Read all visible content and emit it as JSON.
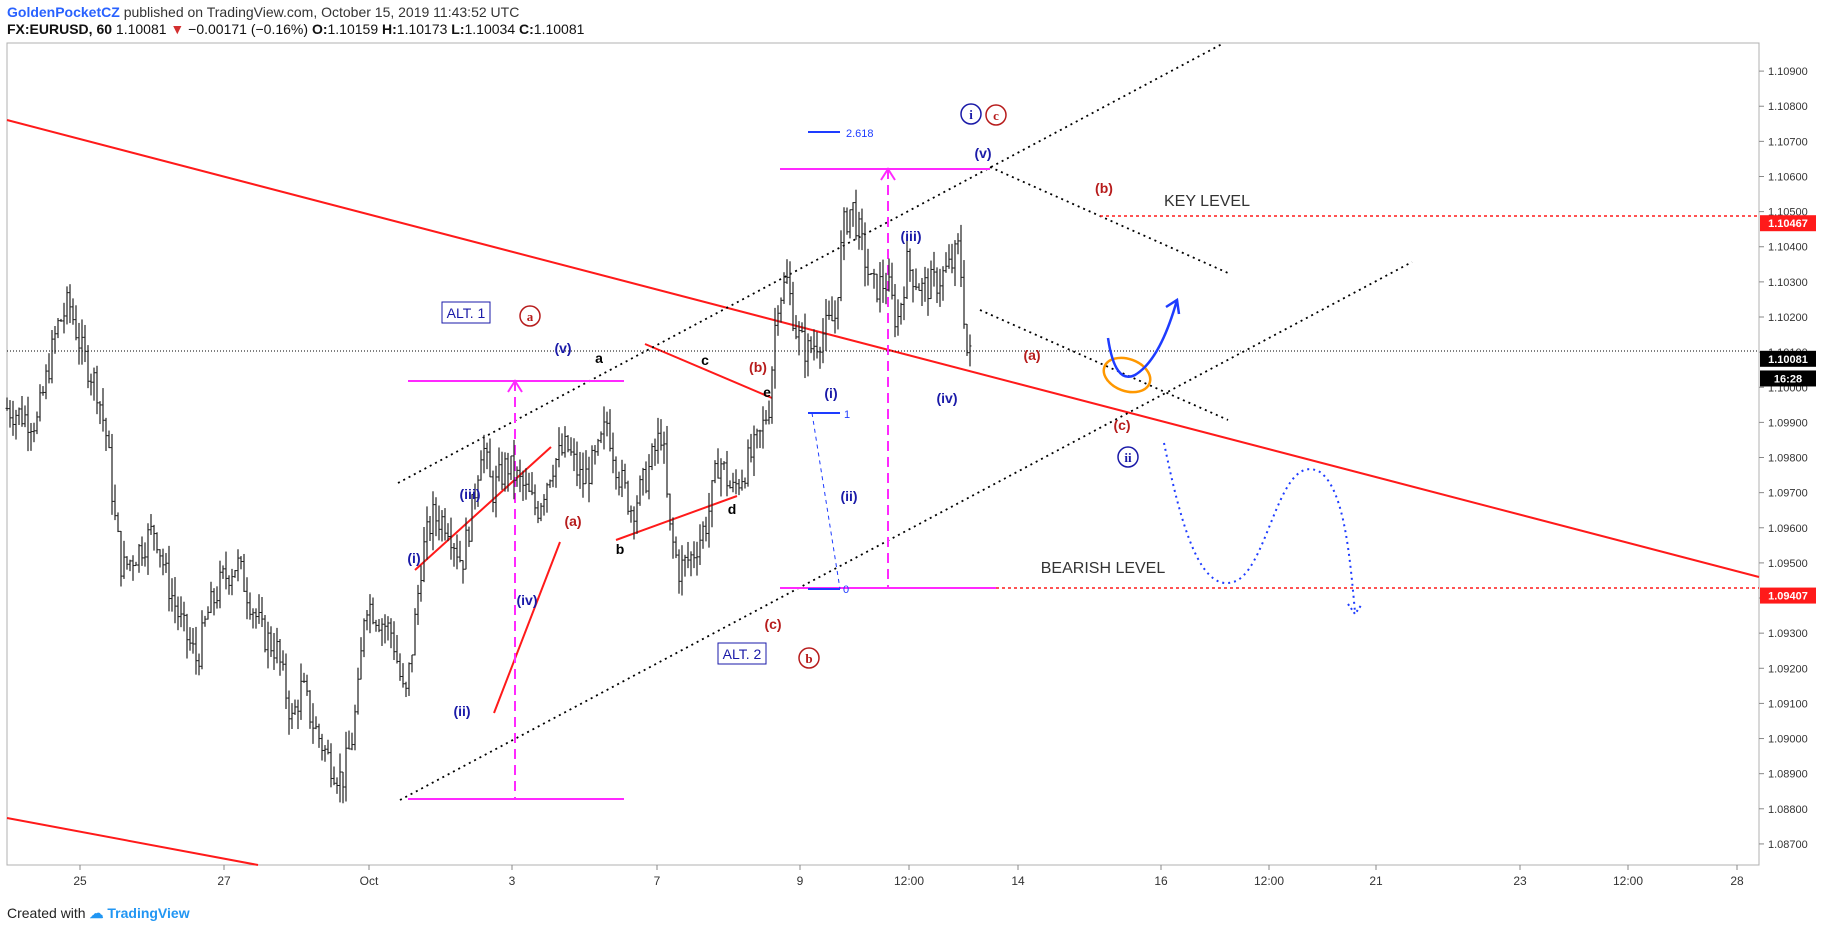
{
  "header": {
    "publisher": "GoldenPocketCZ",
    "published_text": "published on TradingView.com, October 15, 2019 11:43:52 UTC",
    "symbol": "FX:EURUSD, 60",
    "last": "1.10081",
    "change": "−0.00171 (−0.16%)",
    "o_label": "O:",
    "o_value": "1.10159",
    "h_label": "H:",
    "h_value": "1.10173",
    "l_label": "L:",
    "l_value": "1.10034",
    "c_label": "C:",
    "c_value": "1.10081"
  },
  "footer": {
    "created_with": "Created with",
    "brand": "TradingView"
  },
  "colors": {
    "up": "#26a69a",
    "down": "#ef5350",
    "bars": "#222222",
    "trend": "#ff1a1a",
    "magenta": "#ff29ff",
    "label_blue": "#1a1aa8",
    "label_red": "#b71c1c",
    "orange": "#ff9800",
    "forecast": "#1e3cff"
  },
  "chart_data": {
    "type": "ohlc",
    "symbol": "FX:EURUSD",
    "interval": "60",
    "x_ticks": [
      "25",
      "27",
      "Oct",
      "3",
      "7",
      "9",
      "12:00",
      "14",
      "16",
      "12:00",
      "21",
      "23",
      "12:00",
      "28"
    ],
    "y_ticks": [
      "1.10900",
      "1.10800",
      "1.10700",
      "1.10600",
      "1.10500",
      "1.10400",
      "1.10300",
      "1.10200",
      "1.10100",
      "1.10000",
      "1.09900",
      "1.09800",
      "1.09700",
      "1.09600",
      "1.09500",
      "1.09400",
      "1.09300",
      "1.09200",
      "1.09100",
      "1.09000",
      "1.08900",
      "1.08800",
      "1.08700"
    ],
    "ylim": [
      1.0864,
      1.1098
    ],
    "price_markers": [
      {
        "value": "1.10467",
        "price": 1.10467,
        "color": "#ff1a1a"
      },
      {
        "value": "1.10081",
        "price": 1.10081,
        "color": "#000000"
      },
      {
        "value": "16:28",
        "price": 1.10025,
        "color": "#000000"
      },
      {
        "value": "1.09407",
        "price": 1.09407,
        "color": "#ff1a1a"
      }
    ],
    "levels": [
      {
        "label": "KEY LEVEL",
        "price": 1.10467
      },
      {
        "label": "BEARISH LEVEL",
        "price": 1.09407
      }
    ],
    "fib_labels": [
      "2.618",
      "1",
      "0"
    ],
    "wave_labels": [
      {
        "text": "(i)",
        "color": "blue"
      },
      {
        "text": "(ii)",
        "color": "blue"
      },
      {
        "text": "(iii)",
        "color": "blue"
      },
      {
        "text": "(iv)",
        "color": "blue"
      },
      {
        "text": "(v)",
        "color": "blue"
      },
      {
        "text": "(i)",
        "color": "blue"
      },
      {
        "text": "(ii)",
        "color": "blue"
      },
      {
        "text": "(iii)",
        "color": "blue"
      },
      {
        "text": "(iv)",
        "color": "blue"
      },
      {
        "text": "(v)",
        "color": "blue"
      },
      {
        "text": "(a)",
        "color": "red"
      },
      {
        "text": "(b)",
        "color": "red"
      },
      {
        "text": "(c)",
        "color": "red"
      },
      {
        "text": "(a)",
        "color": "red"
      },
      {
        "text": "(b)",
        "color": "red"
      },
      {
        "text": "(c)",
        "color": "red"
      },
      {
        "text": "a",
        "color": "black"
      },
      {
        "text": "b",
        "color": "black"
      },
      {
        "text": "c",
        "color": "black"
      },
      {
        "text": "d",
        "color": "black"
      },
      {
        "text": "e",
        "color": "black"
      }
    ],
    "circled_labels": [
      {
        "text": "a",
        "color": "red"
      },
      {
        "text": "b",
        "color": "red"
      },
      {
        "text": "c",
        "color": "red"
      },
      {
        "text": "i",
        "color": "blue"
      },
      {
        "text": "ii",
        "color": "blue"
      }
    ],
    "boxed_labels": [
      "ALT. 1",
      "ALT. 2"
    ],
    "series_points": [
      [
        0,
        1.0994
      ],
      [
        30,
        1.099
      ],
      [
        50,
        1.1017
      ],
      [
        62,
        1.1024
      ],
      [
        75,
        1.101
      ],
      [
        90,
        1.1
      ],
      [
        100,
        1.0985
      ],
      [
        108,
        1.0962
      ],
      [
        115,
        1.0948
      ],
      [
        130,
        1.0953
      ],
      [
        148,
        1.096
      ],
      [
        160,
        1.0945
      ],
      [
        175,
        1.0932
      ],
      [
        190,
        1.0922
      ],
      [
        200,
        1.0935
      ],
      [
        215,
        1.0945
      ],
      [
        230,
        1.095
      ],
      [
        240,
        1.0942
      ],
      [
        255,
        1.093
      ],
      [
        270,
        1.0925
      ],
      [
        285,
        1.0905
      ],
      [
        295,
        1.0915
      ],
      [
        305,
        1.0905
      ],
      [
        320,
        1.0895
      ],
      [
        335,
        1.0888
      ],
      [
        345,
        1.09
      ],
      [
        352,
        1.0915
      ],
      [
        358,
        1.094
      ],
      [
        370,
        1.0935
      ],
      [
        385,
        1.093
      ],
      [
        398,
        1.091
      ],
      [
        406,
        1.0928
      ],
      [
        415,
        1.0952
      ],
      [
        425,
        1.0963
      ],
      [
        440,
        1.0962
      ],
      [
        455,
        1.095
      ],
      [
        465,
        1.0965
      ],
      [
        475,
        1.0985
      ],
      [
        485,
        1.097
      ],
      [
        500,
        1.0978
      ],
      [
        515,
        1.0972
      ],
      [
        530,
        1.0965
      ],
      [
        545,
        1.0978
      ],
      [
        560,
        1.0983
      ],
      [
        575,
        1.0973
      ],
      [
        590,
        1.098
      ],
      [
        600,
        1.099
      ],
      [
        612,
        1.0975
      ],
      [
        625,
        1.0965
      ],
      [
        640,
        1.0975
      ],
      [
        655,
        1.0988
      ],
      [
        662,
        1.096
      ],
      [
        672,
        1.0948
      ],
      [
        685,
        1.0952
      ],
      [
        700,
        1.0962
      ],
      [
        712,
        1.098
      ],
      [
        725,
        1.097
      ],
      [
        740,
        1.0978
      ],
      [
        752,
        1.0985
      ],
      [
        762,
        1.0995
      ],
      [
        770,
        1.1025
      ],
      [
        780,
        1.103
      ],
      [
        790,
        1.1015
      ],
      [
        800,
        1.101
      ],
      [
        815,
        1.1015
      ],
      [
        828,
        1.102
      ],
      [
        836,
        1.1045
      ],
      [
        845,
        1.1052
      ],
      [
        855,
        1.104
      ],
      [
        865,
        1.1028
      ],
      [
        880,
        1.103
      ],
      [
        890,
        1.1018
      ],
      [
        900,
        1.1035
      ],
      [
        915,
        1.1028
      ],
      [
        930,
        1.103
      ],
      [
        945,
        1.1035
      ],
      [
        952,
        1.104
      ],
      [
        960,
        1.101
      ],
      [
        965,
        1.1008
      ]
    ]
  }
}
